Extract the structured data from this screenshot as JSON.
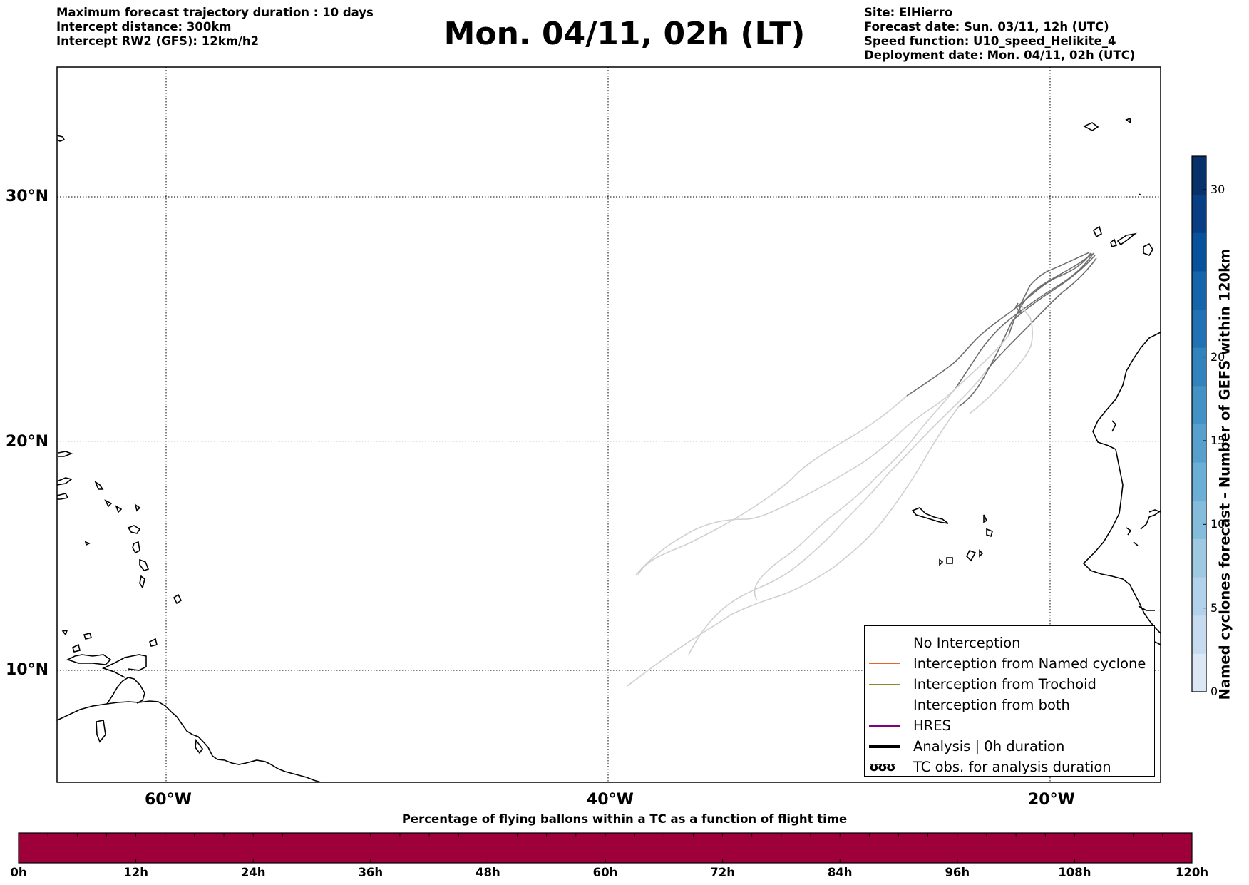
{
  "header": {
    "title": "Mon. 04/11, 02h (LT)",
    "left_lines": [
      "Maximum forecast trajectory duration : 10 days",
      "Intercept distance: 300km",
      "Intercept RW2 (GFS):  12km/h2"
    ],
    "right_lines": [
      "Site: ElHierro",
      "Forecast date: Sun. 03/11, 12h (UTC)",
      "Speed function: U10_speed_Helikite_4",
      "Deployment date: Mon. 04/11, 02h (UTC)"
    ]
  },
  "map": {
    "lon_range": [
      -65,
      15
    ],
    "lat_range": [
      5,
      34.7
    ],
    "lon_ticks": [
      {
        "lon": -60,
        "label": "60°W"
      },
      {
        "lon": -40,
        "label": "40°W"
      },
      {
        "lon": -20,
        "label": "20°W"
      }
    ],
    "lat_ticks": [
      {
        "lat": 30,
        "label": "30°N"
      },
      {
        "lat": 20,
        "label": "20°N"
      },
      {
        "lat": 10,
        "label": "10°N"
      }
    ],
    "grid": true,
    "trajectory_colors": {
      "early": "#6e6e6e",
      "late": "#cfcfcf"
    }
  },
  "legend": {
    "placement": "lower-right",
    "items": [
      {
        "label": "No Interception",
        "color": "#808080",
        "kind": "thin"
      },
      {
        "label": "Interception from Named cyclone",
        "color": "#e8632a",
        "kind": "thin"
      },
      {
        "label": "Interception from Trochoid",
        "color": "#8a8a2a",
        "kind": "thin"
      },
      {
        "label": "Interception from both",
        "color": "#2e8b2e",
        "kind": "thin"
      },
      {
        "label": "HRES",
        "color": "#800080",
        "kind": "thick"
      },
      {
        "label": "Analysis | 0h duration",
        "color": "#000000",
        "kind": "thick"
      },
      {
        "label": "TC obs. for analysis duration",
        "color": "#000000",
        "kind": "glyph",
        "glyph": "ʊʊʊ"
      }
    ]
  },
  "colorbar_vertical": {
    "label": "Named cyclones forecast - Number of GEFS within 120km",
    "range": [
      0,
      32
    ],
    "ticks": [
      "0",
      "5",
      "10",
      "15",
      "20",
      "30"
    ],
    "tick_values": [
      0,
      5,
      10,
      15,
      20,
      30
    ],
    "colors": [
      "#dbe7f5",
      "#c6dbef",
      "#b2d1ea",
      "#9ecae1",
      "#84bcdc",
      "#6baed6",
      "#57a0ce",
      "#4292c6",
      "#3282be",
      "#2171b5",
      "#1664ab",
      "#08519c",
      "#083f84",
      "#08306b"
    ]
  },
  "colorbar_horizontal": {
    "title": "Percentage of flying ballons within a TC as a function of flight time",
    "ticks": [
      "0h",
      "12h",
      "24h",
      "36h",
      "48h",
      "60h",
      "72h",
      "84h",
      "96h",
      "108h",
      "120h"
    ],
    "fill_color": "#9e003a"
  }
}
